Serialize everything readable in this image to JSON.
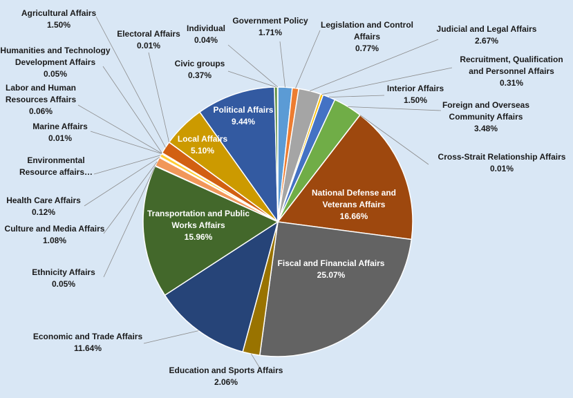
{
  "chart_data": {
    "type": "pie",
    "title": "",
    "start_slice": "Government Policy",
    "direction": "clockwise",
    "slices": [
      {
        "name": "Government Policy",
        "value": 1.71,
        "pct": "1.71%",
        "color": "#5b9bd5"
      },
      {
        "name": "Legislation and Control Affairs",
        "value": 0.77,
        "pct": "0.77%",
        "color": "#ed7d31"
      },
      {
        "name": "Judicial and Legal Affairs",
        "value": 2.67,
        "pct": "2.67%",
        "color": "#a5a5a5"
      },
      {
        "name": "Recruitment, Qualification and Personnel Affairs",
        "value": 0.31,
        "pct": "0.31%",
        "color": "#ffc000"
      },
      {
        "name": "Interior Affairs",
        "value": 1.5,
        "pct": "1.50%",
        "color": "#4472c4"
      },
      {
        "name": "Foreign and Overseas Community Affairs",
        "value": 3.48,
        "pct": "3.48%",
        "color": "#70ad47"
      },
      {
        "name": "Cross-Strait Relationship Affairs",
        "value": 0.01,
        "pct": "0.01%",
        "color": "#255e91"
      },
      {
        "name": "National Defense and Veterans Affairs",
        "value": 16.66,
        "pct": "16.66%",
        "color": "#9e480e"
      },
      {
        "name": "Fiscal and Financial Affairs",
        "value": 25.07,
        "pct": "25.07%",
        "color": "#636363"
      },
      {
        "name": "Education and Sports Affairs",
        "value": 2.06,
        "pct": "2.06%",
        "color": "#997300"
      },
      {
        "name": "Economic and Trade Affairs",
        "value": 11.64,
        "pct": "11.64%",
        "color": "#264478"
      },
      {
        "name": "Transportation and Public Works Affairs",
        "value": 15.96,
        "pct": "15.96%",
        "color": "#43682b"
      },
      {
        "name": "Ethnicity Affairs",
        "value": 0.05,
        "pct": "0.05%",
        "color": "#7cafdd"
      },
      {
        "name": "Culture and Media Affairs",
        "value": 1.08,
        "pct": "1.08%",
        "color": "#f1975a"
      },
      {
        "name": "Health Care Affairs",
        "value": 0.12,
        "pct": "0.12%",
        "color": "#b7b7b7"
      },
      {
        "name": "Environmental Resource affairs…",
        "value": 0.4,
        "pct": "",
        "color": "#ffcd33"
      },
      {
        "name": "Marine Affairs",
        "value": 0.01,
        "pct": "0.01%",
        "color": "#698ed0"
      },
      {
        "name": "Labor and Human Resources Affairs",
        "value": 0.06,
        "pct": "0.06%",
        "color": "#8cc168"
      },
      {
        "name": "Humanities and Technology Development Affairs",
        "value": 0.05,
        "pct": "0.05%",
        "color": "#327dc2"
      },
      {
        "name": "Agricultural Affairs",
        "value": 1.5,
        "pct": "1.50%",
        "color": "#d26012"
      },
      {
        "name": "Electoral Affairs",
        "value": 0.01,
        "pct": "0.01%",
        "color": "#848484"
      },
      {
        "name": "Local Affairs",
        "value": 5.1,
        "pct": "5.10%",
        "color": "#cc9a00"
      },
      {
        "name": "Political Affairs",
        "value": 9.44,
        "pct": "9.44%",
        "color": "#335aa1"
      },
      {
        "name": "Civic groups",
        "value": 0.37,
        "pct": "0.37%",
        "color": "#5e8e3e"
      },
      {
        "name": "Individual",
        "value": 0.04,
        "pct": "0.04%",
        "color": "#2c5f8a"
      }
    ]
  }
}
